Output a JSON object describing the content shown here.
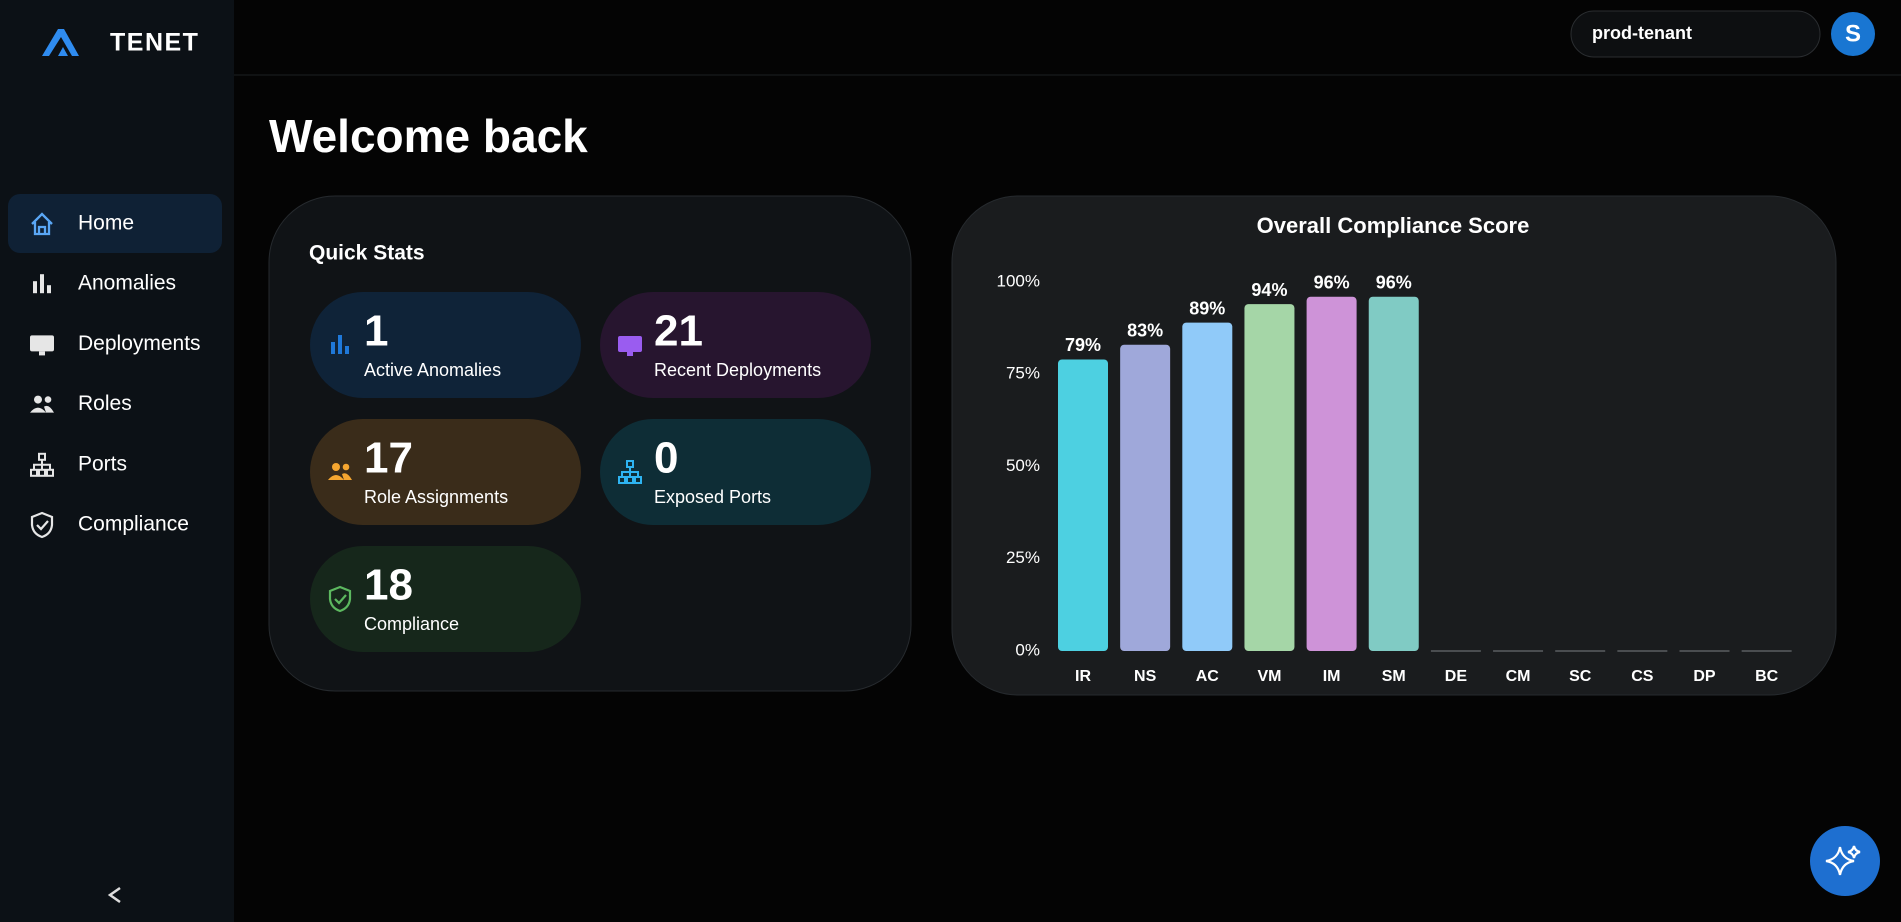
{
  "brand": "TENET",
  "nav": [
    "Home",
    "Anomalies",
    "Deployments",
    "Roles",
    "Ports",
    "Compliance"
  ],
  "tenant": "prod-tenant",
  "avatar": "S",
  "heading": "Welcome back",
  "quick_stats": {
    "title": "Quick Stats",
    "items": [
      {
        "value": 1,
        "label": "Active Anomalies"
      },
      {
        "value": 21,
        "label": "Recent Deployments"
      },
      {
        "value": 17,
        "label": "Role Assignments"
      },
      {
        "value": 0,
        "label": "Exposed Ports"
      },
      {
        "value": 18,
        "label": "Compliance"
      }
    ]
  },
  "chart_data": {
    "type": "bar",
    "title": "Overall Compliance Score",
    "categories": [
      "IR",
      "NS",
      "AC",
      "VM",
      "IM",
      "SM",
      "DE",
      "CM",
      "SC",
      "CS",
      "DP",
      "BC"
    ],
    "values": [
      79,
      83,
      89,
      94,
      96,
      96,
      0,
      0,
      0,
      0,
      0,
      0
    ],
    "value_labels": [
      "79%",
      "83%",
      "89%",
      "94%",
      "96%",
      "96%",
      null,
      null,
      null,
      null,
      null,
      null
    ],
    "colors": [
      "#4dd0e1",
      "#9fa8da",
      "#90caf9",
      "#a5d6a7",
      "#ce93d8",
      "#80cbc4",
      "#4a4d50",
      "#4a4d50",
      "#4a4d50",
      "#4a4d50",
      "#4a4d50",
      "#4a4d50"
    ],
    "ylim": [
      0,
      100
    ],
    "yticks": [
      {
        "value": 0,
        "label": "0%"
      },
      {
        "value": 25,
        "label": "25%"
      },
      {
        "value": 50,
        "label": "50%"
      },
      {
        "value": 75,
        "label": "75%"
      },
      {
        "value": 100,
        "label": "100%"
      }
    ],
    "grid": false
  }
}
